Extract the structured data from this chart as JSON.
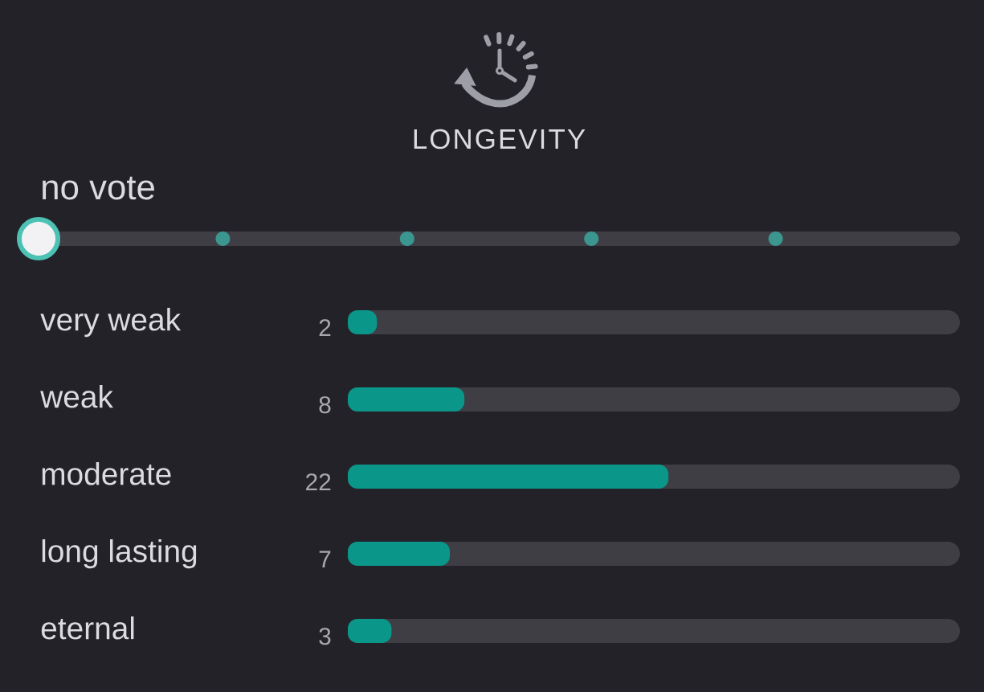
{
  "chart_data": {
    "type": "bar",
    "orientation": "horizontal",
    "title": "LONGEVITY",
    "annotations": [
      "no vote"
    ],
    "categories": [
      "very weak",
      "weak",
      "moderate",
      "long lasting",
      "eternal"
    ],
    "values": [
      2,
      8,
      22,
      7,
      3
    ],
    "color": "#0b968a",
    "xlim": [
      0,
      42
    ],
    "data_labels": true
  }
}
